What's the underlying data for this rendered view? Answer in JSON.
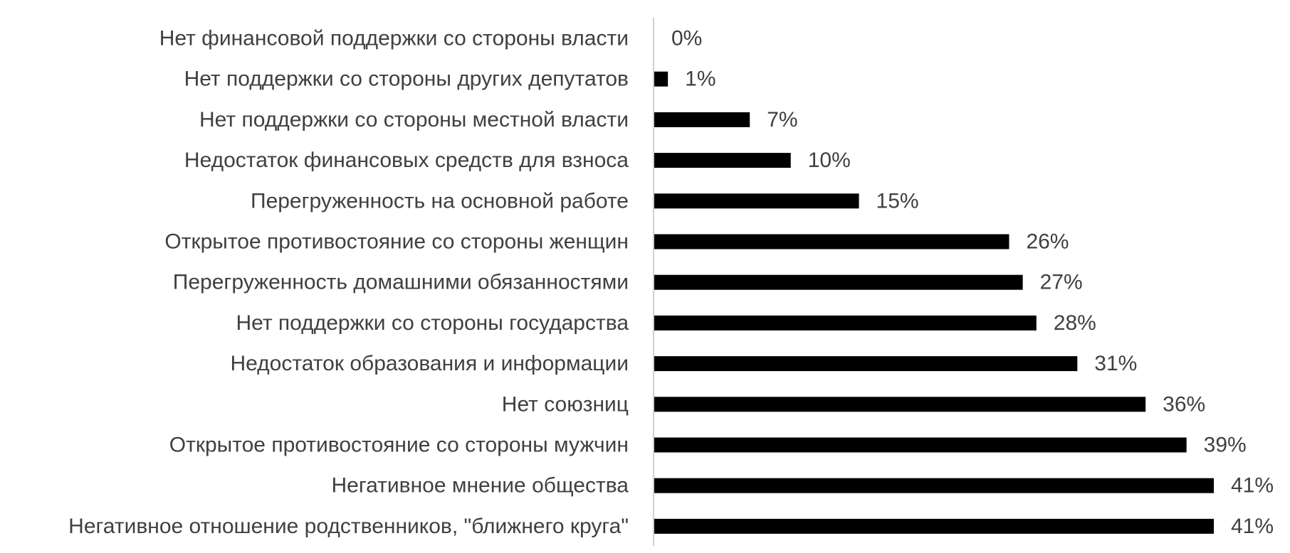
{
  "chart_data": {
    "type": "bar",
    "orientation": "horizontal",
    "categories": [
      "Нет финансовой поддержки со стороны власти",
      "Нет поддержки со стороны других депутатов",
      "Нет поддержки со стороны местной власти",
      "Недостаток финансовых средств для взноса",
      "Перегруженность на основной работе",
      "Открытое противостояние со стороны женщин",
      "Перегруженность домашними обязанностями",
      "Нет поддержки со стороны государства",
      "Недостаток образования и информации",
      "Нет союзниц",
      "Открытое противостояние со стороны мужчин",
      "Негативное мнение общества",
      "Негативное отношение родственников, \"ближнего круга\""
    ],
    "values": [
      0,
      1,
      7,
      10,
      15,
      26,
      27,
      28,
      31,
      36,
      39,
      41,
      41
    ],
    "value_labels": [
      "0%",
      "1%",
      "7%",
      "10%",
      "15%",
      "26%",
      "27%",
      "28%",
      "31%",
      "36%",
      "39%",
      "41%",
      "41%"
    ],
    "xlim": [
      0,
      41
    ],
    "grid": false,
    "legend": "none",
    "bar_color": "#000000",
    "label_color": "#404040",
    "axis_color": "#d0d0d0"
  }
}
